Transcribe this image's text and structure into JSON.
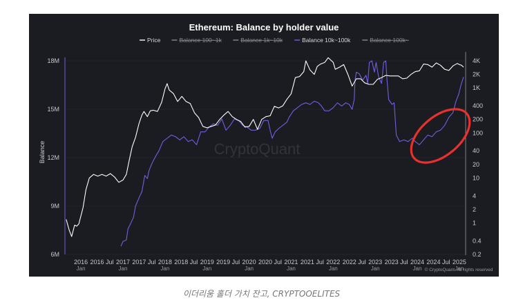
{
  "caption": "이더리움 홀더 가치 잔고, CRYPTOOELITES",
  "watermark": "CryptoQuant",
  "copyright": "© CryptoQuant. All rights reserved",
  "colors": {
    "panel": "#1b1b22",
    "price": "#ffffff",
    "balance": "#6e62e0",
    "highlight": "#e8312b",
    "grid": "#2c2c36"
  },
  "chart_data": {
    "type": "line",
    "title": "Ethereum: Balance by holder value",
    "ylabel": "Balance",
    "legend": [
      {
        "label": "Price",
        "color": "#ffffff",
        "visible": true
      },
      {
        "label": "Balance 100~1k",
        "color": "#8a8a96",
        "visible": false
      },
      {
        "label": "Balance 1k~10k",
        "color": "#8a8a96",
        "visible": false
      },
      {
        "label": "Balance 10k~100k",
        "color": "#6e62e0",
        "visible": true
      },
      {
        "label": "Balance 100k~",
        "color": "#8a8a96",
        "visible": false
      }
    ],
    "legend_position": "top-center",
    "x_ticks": [
      {
        "x": 2016.0,
        "label": "2016",
        "sub": "Jan"
      },
      {
        "x": 2016.5,
        "label": "2016 Jul",
        "sub": ""
      },
      {
        "x": 2017.0,
        "label": "2017",
        "sub": "Jan"
      },
      {
        "x": 2017.5,
        "label": "2017 Jul",
        "sub": ""
      },
      {
        "x": 2018.0,
        "label": "2018",
        "sub": "Jan"
      },
      {
        "x": 2018.5,
        "label": "2018 Jul",
        "sub": ""
      },
      {
        "x": 2019.0,
        "label": "2019",
        "sub": "Jan"
      },
      {
        "x": 2019.5,
        "label": "2019 Jul",
        "sub": ""
      },
      {
        "x": 2020.0,
        "label": "2020",
        "sub": "Jan"
      },
      {
        "x": 2020.5,
        "label": "2020 Jul",
        "sub": ""
      },
      {
        "x": 2021.0,
        "label": "2021",
        "sub": "Jan"
      },
      {
        "x": 2021.5,
        "label": "2021 Jul",
        "sub": ""
      },
      {
        "x": 2022.0,
        "label": "2022",
        "sub": "Jan"
      },
      {
        "x": 2022.5,
        "label": "2022 Jul",
        "sub": ""
      },
      {
        "x": 2023.0,
        "label": "2023",
        "sub": "Jan"
      },
      {
        "x": 2023.5,
        "label": "2023 Jul",
        "sub": ""
      },
      {
        "x": 2024.0,
        "label": "2024",
        "sub": "Jan"
      },
      {
        "x": 2024.5,
        "label": "2024 Jul",
        "sub": ""
      },
      {
        "x": 2025.0,
        "label": "2025",
        "sub": "Jan"
      }
    ],
    "xlim": [
      2015.62,
      2025.15
    ],
    "y_left": {
      "min": 6000000,
      "max": 18000000,
      "ticks": [
        {
          "v": 6000000,
          "label": "6M"
        },
        {
          "v": 9000000,
          "label": "9M"
        },
        {
          "v": 12000000,
          "label": "12M"
        },
        {
          "v": 15000000,
          "label": "15M"
        },
        {
          "v": 18000000,
          "label": "18M"
        }
      ]
    },
    "y_right": {
      "scale": "log",
      "min": 0.2,
      "max": 4000,
      "ticks": [
        {
          "v": 4000,
          "label": "4K"
        },
        {
          "v": 2000,
          "label": "2K"
        },
        {
          "v": 1000,
          "label": "1K"
        },
        {
          "v": 400,
          "label": "400"
        },
        {
          "v": 200,
          "label": "200"
        },
        {
          "v": 100,
          "label": "100"
        },
        {
          "v": 40,
          "label": "40"
        },
        {
          "v": 20,
          "label": "20"
        },
        {
          "v": 10,
          "label": "10"
        },
        {
          "v": 4,
          "label": "4"
        },
        {
          "v": 2,
          "label": "2"
        },
        {
          "v": 1,
          "label": "1"
        },
        {
          "v": 0.4,
          "label": "0.4"
        },
        {
          "v": 0.2,
          "label": "0.2"
        }
      ]
    },
    "grid": false,
    "series": [
      {
        "name": "Price",
        "axis": "right",
        "color": "#ffffff",
        "points": [
          [
            2015.65,
            1.2
          ],
          [
            2015.72,
            0.7
          ],
          [
            2015.78,
            0.5
          ],
          [
            2015.85,
            0.9
          ],
          [
            2015.9,
            0.85
          ],
          [
            2015.95,
            0.95
          ],
          [
            2016.05,
            2.2
          ],
          [
            2016.12,
            5.5
          ],
          [
            2016.2,
            10
          ],
          [
            2016.3,
            12
          ],
          [
            2016.4,
            11
          ],
          [
            2016.5,
            12
          ],
          [
            2016.6,
            11
          ],
          [
            2016.7,
            12.5
          ],
          [
            2016.8,
            10.5
          ],
          [
            2016.9,
            8
          ],
          [
            2017.0,
            9
          ],
          [
            2017.08,
            12
          ],
          [
            2017.15,
            25
          ],
          [
            2017.22,
            50
          ],
          [
            2017.3,
            80
          ],
          [
            2017.38,
            160
          ],
          [
            2017.45,
            250
          ],
          [
            2017.5,
            300
          ],
          [
            2017.58,
            230
          ],
          [
            2017.65,
            310
          ],
          [
            2017.72,
            320
          ],
          [
            2017.82,
            300
          ],
          [
            2017.92,
            480
          ],
          [
            2018.0,
            950
          ],
          [
            2018.05,
            1250
          ],
          [
            2018.1,
            900
          ],
          [
            2018.2,
            750
          ],
          [
            2018.3,
            500
          ],
          [
            2018.4,
            650
          ],
          [
            2018.5,
            500
          ],
          [
            2018.6,
            450
          ],
          [
            2018.7,
            280
          ],
          [
            2018.8,
            220
          ],
          [
            2018.9,
            140
          ],
          [
            2019.0,
            130
          ],
          [
            2019.1,
            140
          ],
          [
            2019.2,
            150
          ],
          [
            2019.3,
            200
          ],
          [
            2019.4,
            250
          ],
          [
            2019.5,
            300
          ],
          [
            2019.6,
            230
          ],
          [
            2019.7,
            200
          ],
          [
            2019.8,
            180
          ],
          [
            2019.9,
            135
          ],
          [
            2020.0,
            140
          ],
          [
            2020.1,
            200
          ],
          [
            2020.2,
            120
          ],
          [
            2020.3,
            200
          ],
          [
            2020.4,
            230
          ],
          [
            2020.5,
            240
          ],
          [
            2020.6,
            390
          ],
          [
            2020.7,
            360
          ],
          [
            2020.8,
            400
          ],
          [
            2020.9,
            560
          ],
          [
            2021.0,
            740
          ],
          [
            2021.1,
            1700
          ],
          [
            2021.2,
            1800
          ],
          [
            2021.3,
            2300
          ],
          [
            2021.35,
            4000
          ],
          [
            2021.45,
            2500
          ],
          [
            2021.55,
            2000
          ],
          [
            2021.62,
            3000
          ],
          [
            2021.7,
            3400
          ],
          [
            2021.8,
            3700
          ],
          [
            2021.88,
            4700
          ],
          [
            2022.0,
            3700
          ],
          [
            2022.05,
            2600
          ],
          [
            2022.15,
            2900
          ],
          [
            2022.25,
            3300
          ],
          [
            2022.35,
            2000
          ],
          [
            2022.45,
            1100
          ],
          [
            2022.55,
            1600
          ],
          [
            2022.65,
            1600
          ],
          [
            2022.75,
            1300
          ],
          [
            2022.85,
            1200
          ],
          [
            2022.95,
            1200
          ],
          [
            2023.05,
            1550
          ],
          [
            2023.15,
            1700
          ],
          [
            2023.25,
            1900
          ],
          [
            2023.35,
            1850
          ],
          [
            2023.45,
            1850
          ],
          [
            2023.55,
            1850
          ],
          [
            2023.65,
            1600
          ],
          [
            2023.75,
            1650
          ],
          [
            2023.85,
            2000
          ],
          [
            2023.95,
            2300
          ],
          [
            2024.05,
            2400
          ],
          [
            2024.15,
            3400
          ],
          [
            2024.25,
            3300
          ],
          [
            2024.35,
            2900
          ],
          [
            2024.45,
            3600
          ],
          [
            2024.55,
            3200
          ],
          [
            2024.65,
            2600
          ],
          [
            2024.75,
            2450
          ],
          [
            2024.85,
            3100
          ],
          [
            2024.95,
            3500
          ],
          [
            2025.0,
            3300
          ],
          [
            2025.05,
            3200
          ],
          [
            2025.1,
            2900
          ]
        ]
      },
      {
        "name": "Balance 10k~100k",
        "axis": "left",
        "color": "#6e62e0",
        "points": [
          [
            2016.95,
            6.5
          ],
          [
            2017.0,
            6.8
          ],
          [
            2017.08,
            6.9
          ],
          [
            2017.12,
            7.6
          ],
          [
            2017.18,
            7.9
          ],
          [
            2017.25,
            8.3
          ],
          [
            2017.3,
            9.0
          ],
          [
            2017.38,
            9.5
          ],
          [
            2017.45,
            9.9
          ],
          [
            2017.52,
            10.9
          ],
          [
            2017.58,
            10.7
          ],
          [
            2017.62,
            11.2
          ],
          [
            2017.7,
            11.7
          ],
          [
            2017.78,
            12.1
          ],
          [
            2017.85,
            12.4
          ],
          [
            2017.95,
            13.0
          ],
          [
            2018.05,
            13.2
          ],
          [
            2018.15,
            13.4
          ],
          [
            2018.25,
            13.3
          ],
          [
            2018.35,
            13.1
          ],
          [
            2018.45,
            13.3
          ],
          [
            2018.55,
            13.0
          ],
          [
            2018.65,
            13.1
          ],
          [
            2018.75,
            12.8
          ],
          [
            2018.85,
            13.6
          ],
          [
            2018.95,
            13.6
          ],
          [
            2019.05,
            13.9
          ],
          [
            2019.15,
            14.1
          ],
          [
            2019.25,
            14.0
          ],
          [
            2019.35,
            14.4
          ],
          [
            2019.45,
            13.7
          ],
          [
            2019.55,
            14.0
          ],
          [
            2019.65,
            14.4
          ],
          [
            2019.75,
            14.3
          ],
          [
            2019.85,
            14.0
          ],
          [
            2019.95,
            13.9
          ],
          [
            2020.05,
            13.7
          ],
          [
            2020.15,
            13.7
          ],
          [
            2020.25,
            13.8
          ],
          [
            2020.35,
            14.3
          ],
          [
            2020.45,
            14.3
          ],
          [
            2020.5,
            13.7
          ],
          [
            2020.55,
            13.2
          ],
          [
            2020.62,
            13.6
          ],
          [
            2020.7,
            13.8
          ],
          [
            2020.8,
            14.0
          ],
          [
            2020.9,
            14.2
          ],
          [
            2020.95,
            14.5
          ],
          [
            2021.05,
            14.9
          ],
          [
            2021.15,
            15.1
          ],
          [
            2021.25,
            15.3
          ],
          [
            2021.35,
            15.4
          ],
          [
            2021.45,
            15.3
          ],
          [
            2021.55,
            15.5
          ],
          [
            2021.65,
            15.4
          ],
          [
            2021.72,
            15.2
          ],
          [
            2021.8,
            14.9
          ],
          [
            2021.9,
            14.9
          ],
          [
            2022.0,
            15.1
          ],
          [
            2022.1,
            15.4
          ],
          [
            2022.2,
            15.2
          ],
          [
            2022.3,
            15.4
          ],
          [
            2022.38,
            15.3
          ],
          [
            2022.45,
            15.0
          ],
          [
            2022.5,
            15.6
          ],
          [
            2022.52,
            16.8
          ],
          [
            2022.55,
            17.3
          ],
          [
            2022.62,
            17.2
          ],
          [
            2022.7,
            16.8
          ],
          [
            2022.78,
            17.1
          ],
          [
            2022.82,
            16.6
          ],
          [
            2022.86,
            17.9
          ],
          [
            2022.92,
            18.0
          ],
          [
            2022.98,
            17.3
          ],
          [
            2023.02,
            17.9
          ],
          [
            2023.08,
            17.0
          ],
          [
            2023.15,
            16.6
          ],
          [
            2023.2,
            17.9
          ],
          [
            2023.25,
            18.0
          ],
          [
            2023.28,
            16.8
          ],
          [
            2023.32,
            15.6
          ],
          [
            2023.4,
            15.3
          ],
          [
            2023.45,
            15.4
          ],
          [
            2023.5,
            13.4
          ],
          [
            2023.58,
            13.0
          ],
          [
            2023.68,
            13.1
          ],
          [
            2023.78,
            13.0
          ],
          [
            2023.88,
            13.2
          ],
          [
            2023.95,
            13.0
          ],
          [
            2024.05,
            12.8
          ],
          [
            2024.15,
            13.1
          ],
          [
            2024.25,
            13.4
          ],
          [
            2024.35,
            13.3
          ],
          [
            2024.45,
            13.6
          ],
          [
            2024.55,
            13.7
          ],
          [
            2024.65,
            14.0
          ],
          [
            2024.75,
            14.5
          ],
          [
            2024.85,
            14.8
          ],
          [
            2024.92,
            15.5
          ],
          [
            2024.98,
            15.9
          ],
          [
            2025.05,
            16.6
          ],
          [
            2025.1,
            17.0
          ]
        ]
      }
    ],
    "annotations": [
      {
        "type": "ellipse",
        "color": "#e8312b",
        "cx": 2024.55,
        "cy": 13.35,
        "rx_years": 0.82,
        "ry_units": 2.65,
        "rotate_deg": -40
      }
    ]
  }
}
